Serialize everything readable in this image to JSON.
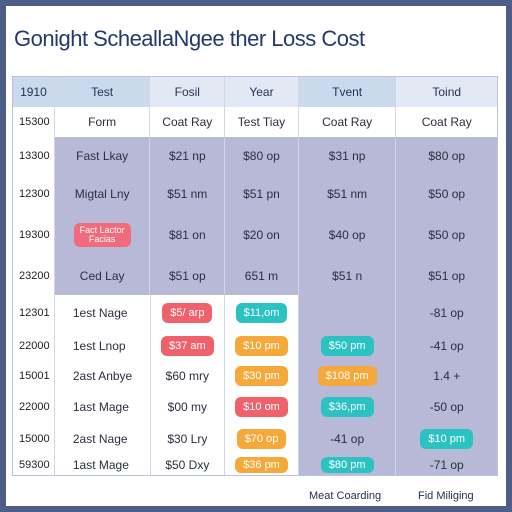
{
  "title": "Gonight ScheallaNgee ther Loss Cost",
  "header": [
    "1910",
    "Test",
    "Fosil",
    "Year",
    "Tvent",
    "Toind"
  ],
  "subheader": [
    "15300",
    "Form",
    "Coat Ray",
    "Test Tiay",
    "Coat Ray",
    "Coat Ray"
  ],
  "rows": [
    {
      "id": "13300",
      "c1": "Fast Lkay",
      "c2": "$21 np",
      "c3": "$80 op",
      "c4": "$31 np",
      "c5": "$80 op"
    },
    {
      "id": "12300",
      "c1": "Migtal Lny",
      "c2": "$51 nm",
      "c3": "$51 pn",
      "c4": "$51 nm",
      "c5": "$50 op"
    },
    {
      "id": "19300",
      "c1a": "Fact Lactor",
      "c1b": "Facias",
      "c2": "$81 on",
      "c3": "$20 on",
      "c4": "$40 op",
      "c5": "$50 op"
    },
    {
      "id": "23200",
      "c1": "Ced Lay",
      "c2": "$51 op",
      "c3": "651 m",
      "c4": "$51 n",
      "c5": "$51 op"
    },
    {
      "id": "12301",
      "c1": "1est Nage",
      "c2": "$5/ arp",
      "c3": "$11,om",
      "c4": "",
      "c5": "-81 op"
    },
    {
      "id": "22000",
      "c1": "1est Lnop",
      "c2": "$37 am",
      "c3": "$10 pm",
      "c4": "$50 pm",
      "c5": "-41 op"
    },
    {
      "id": "15001",
      "c1": "2ast Anbye",
      "c2": "$60 mry",
      "c3": "$30 pm",
      "c4": "$108 pm",
      "c5": "1.4 +"
    },
    {
      "id": "22000",
      "c1": "1ast Mage",
      "c2": "$00 my",
      "c3": "$10 om",
      "c4": "$36,pm",
      "c5": "-50 op"
    },
    {
      "id": "15000",
      "c1": "2ast Nage",
      "c2": "$30 Lry",
      "c3": "$70 op",
      "c4": "-41 op",
      "c5": "$10 pm"
    },
    {
      "id": "59300",
      "c1": "1ast Mage",
      "c2": "$50 Dxy",
      "c3": "$36 pm",
      "c4": "$80 pm",
      "c5": "-71 op"
    }
  ],
  "footer": {
    "left": "Meat Coarding",
    "right": "Fid Miliging"
  },
  "colors": {
    "lavender": "#b7b9d6",
    "red": "#f0626b",
    "teal": "#2cc2c2",
    "orange": "#f5a93a",
    "header_blue": "#cad9ec"
  }
}
